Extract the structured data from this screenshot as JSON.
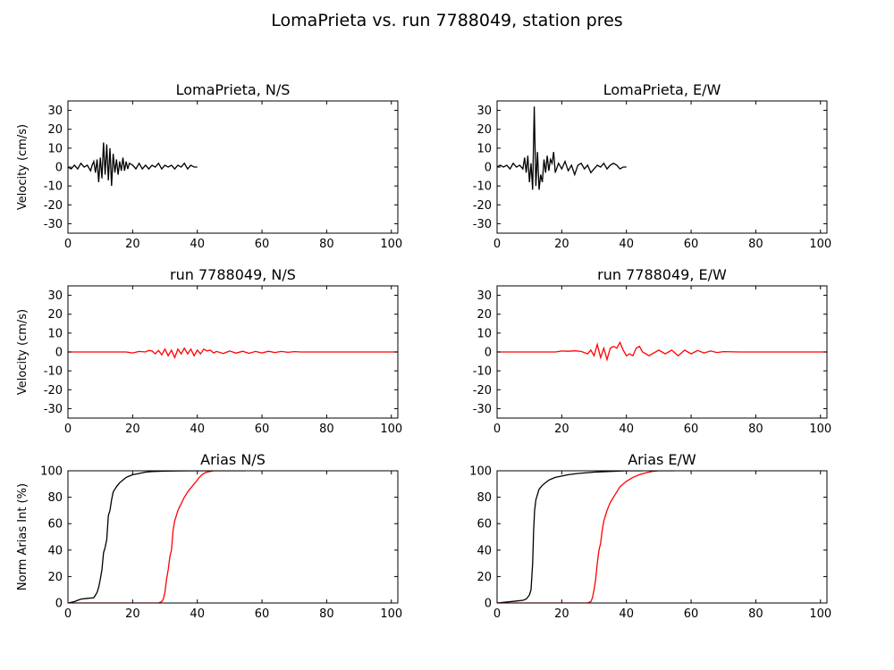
{
  "figure": {
    "title": "LomaPrieta vs. run 7788049, station pres"
  },
  "chart_data": [
    {
      "type": "line",
      "title": "LomaPrieta, N/S",
      "xlabel": "",
      "ylabel": "Velocity (cm/s)",
      "xlim": [
        0,
        102
      ],
      "ylim": [
        -35,
        35
      ],
      "xticks": [
        0,
        20,
        40,
        60,
        80,
        100
      ],
      "yticks": [
        -30,
        -20,
        -10,
        0,
        10,
        20,
        30
      ],
      "series": [
        {
          "color": "#000000",
          "x": [
            0,
            1,
            2,
            3,
            4,
            5,
            6,
            7,
            7.5,
            8,
            8.5,
            9,
            9.5,
            10,
            10.5,
            11,
            11.5,
            12,
            12.5,
            13,
            13.5,
            14,
            14.5,
            15,
            15.5,
            16,
            16.5,
            17,
            17.5,
            18,
            18.5,
            19,
            20,
            21,
            22,
            23,
            24,
            25,
            26,
            27,
            28,
            29,
            30,
            31,
            32,
            33,
            34,
            35,
            36,
            37,
            38,
            39,
            40
          ],
          "values": [
            0,
            -1,
            1,
            -1,
            2,
            0,
            1,
            -2,
            1,
            3,
            -3,
            4,
            -8,
            5,
            -6,
            13,
            -4,
            12,
            -7,
            10,
            -10,
            7,
            -3,
            4,
            -4,
            3,
            -2,
            5,
            -2,
            3,
            -1,
            2,
            1,
            -1,
            2,
            -1,
            1,
            -1,
            1,
            0,
            2,
            -1,
            1,
            0,
            1,
            -1,
            1,
            0,
            2,
            -1,
            1,
            0,
            0
          ]
        }
      ]
    },
    {
      "type": "line",
      "title": "LomaPrieta, E/W",
      "xlabel": "",
      "ylabel": "",
      "xlim": [
        0,
        102
      ],
      "ylim": [
        -35,
        35
      ],
      "xticks": [
        0,
        20,
        40,
        60,
        80,
        100
      ],
      "yticks": [
        -30,
        -20,
        -10,
        0,
        10,
        20,
        30
      ],
      "series": [
        {
          "color": "#000000",
          "x": [
            0,
            1,
            2,
            3,
            4,
            5,
            6,
            7,
            8,
            8.5,
            9,
            9.5,
            10,
            10.5,
            11,
            11.5,
            12,
            12.5,
            13,
            13.5,
            14,
            14.5,
            15,
            15.5,
            16,
            16.5,
            17,
            17.5,
            18,
            19,
            20,
            21,
            22,
            23,
            24,
            25,
            26,
            27,
            28,
            29,
            30,
            31,
            32,
            33,
            34,
            35,
            36,
            37,
            38,
            39,
            40
          ],
          "values": [
            0,
            1,
            0,
            1,
            -1,
            2,
            0,
            1,
            -1,
            5,
            -3,
            6,
            -8,
            2,
            -12,
            32,
            -10,
            8,
            -12,
            -4,
            -8,
            4,
            -3,
            6,
            -2,
            4,
            2,
            8,
            -3,
            2,
            -1,
            3,
            -2,
            1,
            -4,
            1,
            2,
            -1,
            1,
            -3,
            -1,
            1,
            0,
            2,
            -1,
            1,
            2,
            1,
            -1,
            0,
            0
          ]
        }
      ]
    },
    {
      "type": "line",
      "title": "run 7788049, N/S",
      "xlabel": "",
      "ylabel": "Velocity (cm/s)",
      "xlim": [
        0,
        102
      ],
      "ylim": [
        -35,
        35
      ],
      "xticks": [
        0,
        20,
        40,
        60,
        80,
        100
      ],
      "yticks": [
        -30,
        -20,
        -10,
        0,
        10,
        20,
        30
      ],
      "series": [
        {
          "color": "#ff0000",
          "x": [
            0,
            10,
            18,
            20,
            22,
            24,
            25,
            26,
            27,
            28,
            29,
            30,
            31,
            32,
            33,
            34,
            35,
            36,
            37,
            38,
            39,
            40,
            41,
            42,
            43,
            44,
            45,
            46,
            48,
            50,
            52,
            54,
            56,
            58,
            60,
            62,
            64,
            66,
            68,
            70,
            72,
            75,
            80,
            85,
            90,
            95,
            100,
            102
          ],
          "values": [
            0,
            0,
            0,
            -0.5,
            0.3,
            0,
            0.8,
            0.5,
            -1,
            0.8,
            -1.5,
            1.5,
            -2,
            1,
            -3,
            1.5,
            -1,
            2,
            -1,
            1.5,
            -2,
            1,
            -1,
            1.5,
            0.5,
            1,
            -0.5,
            0.3,
            -0.8,
            0.5,
            -0.6,
            0.4,
            -0.7,
            0.3,
            -0.5,
            0.4,
            -0.3,
            0.3,
            -0.2,
            0.2,
            0,
            0,
            0,
            0,
            0,
            0,
            0,
            0
          ]
        }
      ]
    },
    {
      "type": "line",
      "title": "run 7788049, E/W",
      "xlabel": "",
      "ylabel": "",
      "xlim": [
        0,
        102
      ],
      "ylim": [
        -35,
        35
      ],
      "xticks": [
        0,
        20,
        40,
        60,
        80,
        100
      ],
      "yticks": [
        -30,
        -20,
        -10,
        0,
        10,
        20,
        30
      ],
      "series": [
        {
          "color": "#ff0000",
          "x": [
            0,
            10,
            18,
            20,
            22,
            24,
            26,
            28,
            29,
            30,
            31,
            32,
            33,
            34,
            35,
            36,
            37,
            38,
            39,
            40,
            41,
            42,
            43,
            44,
            45,
            46,
            47,
            48,
            50,
            52,
            54,
            56,
            58,
            60,
            62,
            64,
            66,
            68,
            70,
            75,
            80,
            85,
            90,
            95,
            100,
            102
          ],
          "values": [
            0,
            0,
            0,
            0.5,
            0.4,
            0.6,
            0.3,
            -1,
            1,
            -2,
            4,
            -3,
            2,
            -4,
            2,
            3,
            2,
            5,
            1,
            -2,
            -1,
            -2,
            2,
            3,
            0,
            -1,
            -2,
            -1,
            1,
            -1,
            1,
            -2,
            1,
            -1,
            0.8,
            -0.5,
            0.5,
            -0.3,
            0.2,
            0,
            0,
            0,
            0,
            0,
            0,
            0
          ]
        }
      ]
    },
    {
      "type": "line",
      "title": "Arias N/S",
      "xlabel": "",
      "ylabel": "Norm Arias Int (%)",
      "xlim": [
        0,
        102
      ],
      "ylim": [
        0,
        100
      ],
      "xticks": [
        0,
        20,
        40,
        60,
        80,
        100
      ],
      "yticks": [
        0,
        20,
        40,
        60,
        80,
        100
      ],
      "series": [
        {
          "color": "#000000",
          "x": [
            0,
            2,
            3,
            4,
            6,
            8,
            9,
            9.5,
            10,
            10.5,
            11,
            11.5,
            12,
            12.5,
            13,
            13.5,
            14,
            15,
            16,
            17,
            18,
            19,
            20,
            22,
            24,
            26,
            30,
            35,
            40,
            45
          ],
          "values": [
            0,
            1,
            2,
            3,
            3.5,
            4,
            8,
            12,
            18,
            25,
            38,
            42,
            48,
            66,
            70,
            78,
            84,
            88,
            91,
            93,
            95,
            96,
            97,
            98,
            99,
            99.4,
            99.7,
            99.9,
            100,
            100
          ]
        },
        {
          "color": "#ff0000",
          "x": [
            0,
            28,
            29,
            29.5,
            30,
            30.5,
            31,
            31.5,
            32,
            32.5,
            33,
            33.5,
            34,
            35,
            36,
            37,
            38,
            39,
            40,
            41,
            42,
            43,
            44,
            45,
            50,
            55
          ],
          "values": [
            0,
            0,
            1,
            3,
            8,
            18,
            25,
            35,
            40,
            55,
            62,
            66,
            70,
            75,
            80,
            84,
            87,
            90,
            93,
            96,
            98,
            99,
            99.5,
            100,
            100,
            100
          ]
        }
      ]
    },
    {
      "type": "line",
      "title": "Arias E/W",
      "xlabel": "",
      "ylabel": "",
      "xlim": [
        0,
        102
      ],
      "ylim": [
        0,
        100
      ],
      "xticks": [
        0,
        20,
        40,
        60,
        80,
        100
      ],
      "yticks": [
        0,
        20,
        40,
        60,
        80,
        100
      ],
      "series": [
        {
          "color": "#000000",
          "x": [
            0,
            2,
            4,
            6,
            8,
            9,
            10,
            10.5,
            11,
            11.3,
            11.6,
            12,
            12.5,
            13,
            14,
            15,
            16,
            17,
            18,
            20,
            22,
            25,
            30,
            35,
            40,
            45
          ],
          "values": [
            0,
            0.5,
            1,
            1.5,
            2,
            3,
            6,
            10,
            30,
            55,
            70,
            78,
            82,
            86,
            89,
            91,
            93,
            94,
            95,
            96,
            97,
            98,
            99,
            99.5,
            100,
            100
          ]
        },
        {
          "color": "#ff0000",
          "x": [
            0,
            28,
            29,
            29.5,
            30,
            30.5,
            31,
            31.5,
            32,
            32.5,
            33,
            33.5,
            34,
            35,
            36,
            37,
            38,
            40,
            42,
            44,
            46,
            48,
            50,
            55
          ],
          "values": [
            0,
            0,
            1,
            4,
            10,
            18,
            30,
            40,
            45,
            55,
            62,
            66,
            70,
            76,
            80,
            84,
            88,
            92,
            95,
            97,
            98.5,
            99.5,
            100,
            100
          ]
        }
      ]
    }
  ]
}
